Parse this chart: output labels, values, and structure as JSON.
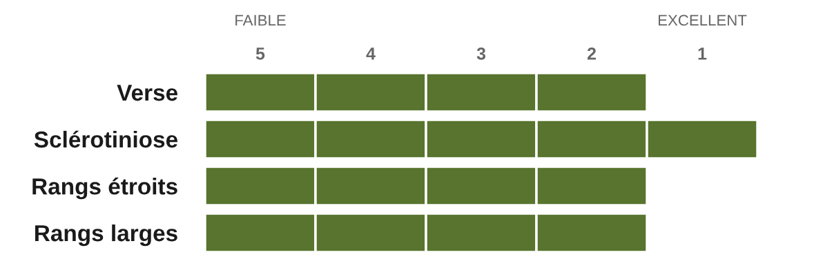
{
  "chart_data": {
    "type": "bar",
    "orientation": "horizontal",
    "categories": [
      "Verse",
      "Sclérotiniose",
      "Rangs étroits",
      "Rangs larges"
    ],
    "series": [
      {
        "color": "#58742e",
        "values": [
          1,
          1,
          1,
          1
        ],
        "base": [
          4.5,
          4.5,
          4.5,
          4.5
        ]
      },
      {
        "color": "#58742e",
        "values": [
          1,
          1,
          1,
          1
        ],
        "base": [
          3.5,
          3.5,
          3.5,
          3.5
        ]
      },
      {
        "color": "#58742e",
        "values": [
          1,
          1,
          1,
          1
        ],
        "base": [
          2.5,
          2.5,
          2.5,
          2.5
        ]
      },
      {
        "color": "#58742e",
        "values": [
          1,
          1,
          1,
          1
        ],
        "base": [
          1.5,
          1.5,
          1.5,
          1.5
        ]
      },
      {
        "color": "#58742e",
        "values": [
          null,
          1,
          null,
          null
        ],
        "base": [
          null,
          0.5,
          null,
          null
        ]
      }
    ],
    "xlim": [
      5.5,
      0.5
    ],
    "xticks": [
      5,
      4,
      3,
      2,
      1
    ],
    "annotations": [
      "FAIBLE",
      "EXCELLENT"
    ],
    "grid": false
  }
}
